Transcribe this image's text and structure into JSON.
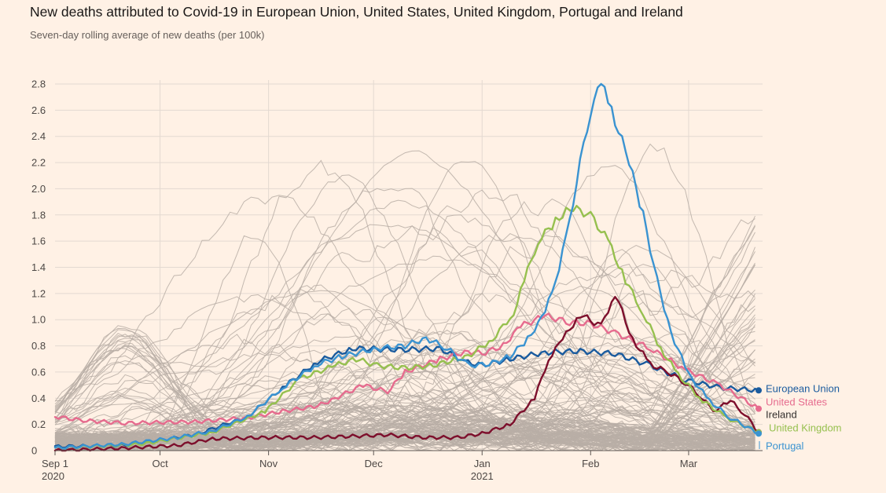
{
  "chart_data": {
    "type": "line",
    "title": "New deaths attributed to Covid-19 in European Union, United States, United Kingdom, Portugal and Ireland",
    "subtitle": "Seven-day rolling average of new deaths (per 100k)",
    "ylim": [
      0,
      2.8
    ],
    "yticks": [
      "0",
      "0.2",
      "0.4",
      "0.6",
      "0.8",
      "1.0",
      "1.2",
      "1.4",
      "1.6",
      "1.8",
      "2.0",
      "2.2",
      "2.4",
      "2.6",
      "2.8"
    ],
    "xlim_days": [
      0,
      201
    ],
    "xticks": [
      {
        "day": 0,
        "label": "Sep 1",
        "sub": "2020"
      },
      {
        "day": 30,
        "label": "Oct",
        "sub": ""
      },
      {
        "day": 61,
        "label": "Nov",
        "sub": ""
      },
      {
        "day": 91,
        "label": "Dec",
        "sub": ""
      },
      {
        "day": 122,
        "label": "Jan",
        "sub": "2021"
      },
      {
        "day": 153,
        "label": "Feb",
        "sub": ""
      },
      {
        "day": 181,
        "label": "Mar",
        "sub": ""
      }
    ],
    "highlighted_series": [
      {
        "name": "European Union",
        "color": "#1a5b9e",
        "points": [
          [
            0,
            0.03
          ],
          [
            20,
            0.04
          ],
          [
            40,
            0.12
          ],
          [
            55,
            0.26
          ],
          [
            66,
            0.5
          ],
          [
            75,
            0.68
          ],
          [
            85,
            0.78
          ],
          [
            100,
            0.77
          ],
          [
            110,
            0.78
          ],
          [
            117,
            0.68
          ],
          [
            122,
            0.65
          ],
          [
            130,
            0.7
          ],
          [
            140,
            0.75
          ],
          [
            150,
            0.76
          ],
          [
            160,
            0.74
          ],
          [
            170,
            0.65
          ],
          [
            180,
            0.54
          ],
          [
            190,
            0.48
          ],
          [
            201,
            0.46
          ]
        ]
      },
      {
        "name": "United States",
        "color": "#e66b8e",
        "points": [
          [
            0,
            0.26
          ],
          [
            8,
            0.23
          ],
          [
            20,
            0.21
          ],
          [
            40,
            0.22
          ],
          [
            55,
            0.25
          ],
          [
            65,
            0.3
          ],
          [
            75,
            0.34
          ],
          [
            80,
            0.4
          ],
          [
            88,
            0.5
          ],
          [
            95,
            0.45
          ],
          [
            100,
            0.6
          ],
          [
            110,
            0.7
          ],
          [
            118,
            0.76
          ],
          [
            122,
            0.74
          ],
          [
            128,
            0.8
          ],
          [
            133,
            0.95
          ],
          [
            140,
            1.03
          ],
          [
            147,
            0.98
          ],
          [
            153,
            0.97
          ],
          [
            160,
            0.9
          ],
          [
            170,
            0.78
          ],
          [
            180,
            0.62
          ],
          [
            190,
            0.5
          ],
          [
            201,
            0.32
          ]
        ]
      },
      {
        "name": "Ireland",
        "color": "#7d0f2c",
        "points": [
          [
            0,
            0.0
          ],
          [
            20,
            0.02
          ],
          [
            35,
            0.04
          ],
          [
            45,
            0.09
          ],
          [
            60,
            0.1
          ],
          [
            75,
            0.1
          ],
          [
            85,
            0.11
          ],
          [
            95,
            0.12
          ],
          [
            105,
            0.1
          ],
          [
            115,
            0.1
          ],
          [
            122,
            0.13
          ],
          [
            130,
            0.2
          ],
          [
            137,
            0.4
          ],
          [
            141,
            0.7
          ],
          [
            145,
            0.85
          ],
          [
            150,
            1.04
          ],
          [
            156,
            0.95
          ],
          [
            160,
            1.2
          ],
          [
            165,
            0.85
          ],
          [
            170,
            0.66
          ],
          [
            175,
            0.6
          ],
          [
            180,
            0.52
          ],
          [
            185,
            0.4
          ],
          [
            188,
            0.3
          ],
          [
            193,
            0.38
          ],
          [
            197,
            0.28
          ],
          [
            201,
            0.14
          ]
        ]
      },
      {
        "name": "United Kingdom",
        "color": "#96c04f",
        "points": [
          [
            0,
            0.02
          ],
          [
            25,
            0.05
          ],
          [
            45,
            0.14
          ],
          [
            60,
            0.3
          ],
          [
            70,
            0.55
          ],
          [
            80,
            0.65
          ],
          [
            86,
            0.7
          ],
          [
            92,
            0.65
          ],
          [
            100,
            0.63
          ],
          [
            108,
            0.65
          ],
          [
            115,
            0.7
          ],
          [
            118,
            0.72
          ],
          [
            125,
            0.85
          ],
          [
            131,
            1.05
          ],
          [
            134,
            1.3
          ],
          [
            138,
            1.6
          ],
          [
            143,
            1.75
          ],
          [
            147,
            1.86
          ],
          [
            153,
            1.8
          ],
          [
            158,
            1.6
          ],
          [
            163,
            1.3
          ],
          [
            168,
            1.05
          ],
          [
            173,
            0.78
          ],
          [
            178,
            0.58
          ],
          [
            185,
            0.38
          ],
          [
            192,
            0.25
          ],
          [
            201,
            0.14
          ]
        ]
      },
      {
        "name": "Portugal",
        "color": "#3a93d1",
        "points": [
          [
            0,
            0.02
          ],
          [
            20,
            0.05
          ],
          [
            35,
            0.1
          ],
          [
            45,
            0.15
          ],
          [
            55,
            0.26
          ],
          [
            65,
            0.48
          ],
          [
            75,
            0.66
          ],
          [
            82,
            0.72
          ],
          [
            92,
            0.78
          ],
          [
            100,
            0.8
          ],
          [
            106,
            0.86
          ],
          [
            112,
            0.78
          ],
          [
            118,
            0.65
          ],
          [
            124,
            0.66
          ],
          [
            130,
            0.72
          ],
          [
            135,
            0.85
          ],
          [
            140,
            1.05
          ],
          [
            144,
            1.4
          ],
          [
            147,
            1.75
          ],
          [
            150,
            2.2
          ],
          [
            153,
            2.6
          ],
          [
            156,
            2.8
          ],
          [
            159,
            2.6
          ],
          [
            164,
            2.2
          ],
          [
            168,
            1.8
          ],
          [
            172,
            1.3
          ],
          [
            176,
            0.9
          ],
          [
            181,
            0.58
          ],
          [
            187,
            0.38
          ],
          [
            193,
            0.25
          ],
          [
            201,
            0.13
          ]
        ]
      }
    ],
    "labels": [
      "European Union",
      "United States",
      "Ireland",
      "United Kingdom",
      "Portugal"
    ]
  }
}
